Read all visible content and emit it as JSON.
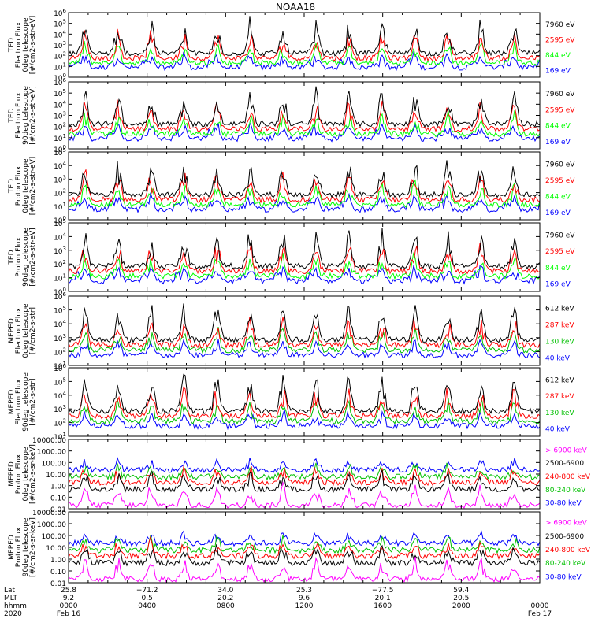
{
  "figure": {
    "title": "NOAA18"
  },
  "chart_data": [
    {
      "type": "line",
      "ylabel": [
        "TED",
        "Electron Flux",
        "0deg telescope",
        "[#/cm2-s-str-eV]"
      ],
      "yscale": "log",
      "ylim": [
        1,
        1000000
      ],
      "ytick_labels": [
        "10^0",
        "10^1",
        "10^2",
        "10^3",
        "10^4",
        "10^5",
        "10^6"
      ],
      "series": [
        {
          "name": "7960 eV",
          "color": "#000000"
        },
        {
          "name": "2595 eV",
          "color": "#ff0000"
        },
        {
          "name": "844 eV",
          "color": "#00ff00"
        },
        {
          "name": "169 eV",
          "color": "#0000ff"
        }
      ]
    },
    {
      "type": "line",
      "ylabel": [
        "TED",
        "Electron Flux",
        "90deg telescope",
        "[#/cm2-s-str-eV]"
      ],
      "yscale": "log",
      "ylim": [
        1,
        1000000
      ],
      "ytick_labels": [
        "10^0",
        "10^1",
        "10^2",
        "10^3",
        "10^4",
        "10^5",
        "10^6"
      ],
      "series": [
        {
          "name": "7960 eV",
          "color": "#000000"
        },
        {
          "name": "2595 eV",
          "color": "#ff0000"
        },
        {
          "name": "844 eV",
          "color": "#00ff00"
        },
        {
          "name": "169 eV",
          "color": "#0000ff"
        }
      ]
    },
    {
      "type": "line",
      "ylabel": [
        "TED",
        "Proton Flux",
        "0deg telescope",
        "[#/cm2-s-str-eV]"
      ],
      "yscale": "log",
      "ylim": [
        1,
        100000
      ],
      "ytick_labels": [
        "10^0",
        "10^1",
        "10^2",
        "10^3",
        "10^4",
        "10^5"
      ],
      "series": [
        {
          "name": "7960 eV",
          "color": "#000000"
        },
        {
          "name": "2595 eV",
          "color": "#ff0000"
        },
        {
          "name": "844 eV",
          "color": "#00ff00"
        },
        {
          "name": "169 eV",
          "color": "#0000ff"
        }
      ]
    },
    {
      "type": "line",
      "ylabel": [
        "TED",
        "Proton Flux",
        "90deg telescope",
        "[#/cm2-s-str-eV]"
      ],
      "yscale": "log",
      "ylim": [
        1,
        100000
      ],
      "ytick_labels": [
        "10^0",
        "10^1",
        "10^2",
        "10^3",
        "10^4",
        "10^5"
      ],
      "series": [
        {
          "name": "7960 eV",
          "color": "#000000"
        },
        {
          "name": "2595 eV",
          "color": "#ff0000"
        },
        {
          "name": "844 eV",
          "color": "#00ff00"
        },
        {
          "name": "169 eV",
          "color": "#0000ff"
        }
      ]
    },
    {
      "type": "line",
      "ylabel": [
        "MEPED",
        "Electron Flux",
        "0deg telescope",
        "[#/cm2-s-str]"
      ],
      "yscale": "log",
      "ylim": [
        10,
        1000000
      ],
      "ytick_labels": [
        "10^1",
        "10^2",
        "10^3",
        "10^4",
        "10^5",
        "10^6"
      ],
      "series": [
        {
          "name": "612 keV",
          "color": "#000000"
        },
        {
          "name": "287 keV",
          "color": "#ff0000"
        },
        {
          "name": "130 keV",
          "color": "#00c000"
        },
        {
          "name": "40 keV",
          "color": "#0000ff"
        }
      ]
    },
    {
      "type": "line",
      "ylabel": [
        "MEPED",
        "Electron Flux",
        "90deg telescope",
        "[#/cm2-s-str]"
      ],
      "yscale": "log",
      "ylim": [
        10,
        1000000
      ],
      "ytick_labels": [
        "10^1",
        "10^2",
        "10^3",
        "10^4",
        "10^5",
        "10^6"
      ],
      "series": [
        {
          "name": "612 keV",
          "color": "#000000"
        },
        {
          "name": "287 keV",
          "color": "#ff0000"
        },
        {
          "name": "130 keV",
          "color": "#00c000"
        },
        {
          "name": "40 keV",
          "color": "#0000ff"
        }
      ]
    },
    {
      "type": "line",
      "ylabel": [
        "MEPED",
        "Proton Flux",
        "0deg telescope",
        "[#/cm2-s-sr-keV]"
      ],
      "yscale": "log",
      "ylim": [
        0.01,
        10000
      ],
      "ytick_labels": [
        "10000.00",
        "1000.00",
        "100.00",
        "10.00",
        "1.00",
        "0.10",
        "0.01"
      ],
      "series": [
        {
          "name": "> 6900 keV",
          "color": "#ff00ff"
        },
        {
          "name": "2500-6900",
          "color": "#000000"
        },
        {
          "name": "240-800 keV",
          "color": "#ff0000"
        },
        {
          "name": "80-240 keV",
          "color": "#00c000"
        },
        {
          "name": "30-80 keV",
          "color": "#0000ff"
        }
      ]
    },
    {
      "type": "line",
      "ylabel": [
        "MEPED",
        "Proton Flux",
        "90deg telescope",
        "[#/cm2-s-sr-keV]"
      ],
      "yscale": "log",
      "ylim": [
        0.01,
        10000
      ],
      "ytick_labels": [
        "10000.00",
        "1000.00",
        "100.00",
        "10.00",
        "1.00",
        "0.10",
        "0.01"
      ],
      "series": [
        {
          "name": "> 6900 keV",
          "color": "#ff00ff"
        },
        {
          "name": "2500-6900",
          "color": "#000000"
        },
        {
          "name": "240-800 keV",
          "color": "#ff0000"
        },
        {
          "name": "80-240 keV",
          "color": "#00c000"
        },
        {
          "name": "30-80 keV",
          "color": "#0000ff"
        }
      ]
    }
  ],
  "x_axis": {
    "row_labels": [
      "Lat",
      "MLT",
      "hhmm",
      "2020"
    ],
    "columns": [
      {
        "lat": "25.8",
        "mlt": "9.2",
        "hhmm": "0000",
        "date": "Feb 16",
        "t": 0
      },
      {
        "lat": "−71.2",
        "mlt": "0.5",
        "hhmm": "0400",
        "date": "",
        "t": 4
      },
      {
        "lat": "34.0",
        "mlt": "20.2",
        "hhmm": "0800",
        "date": "",
        "t": 8
      },
      {
        "lat": "25.3",
        "mlt": "9.6",
        "hhmm": "1200",
        "date": "",
        "t": 12
      },
      {
        "lat": "−77.5",
        "mlt": "20.1",
        "hhmm": "1600",
        "date": "",
        "t": 16
      },
      {
        "lat": "59.4",
        "mlt": "20.5",
        "hhmm": "2000",
        "date": "",
        "t": 20
      },
      {
        "lat": "",
        "mlt": "",
        "hhmm": "0000",
        "date": "Feb 17",
        "t": 24
      }
    ]
  }
}
